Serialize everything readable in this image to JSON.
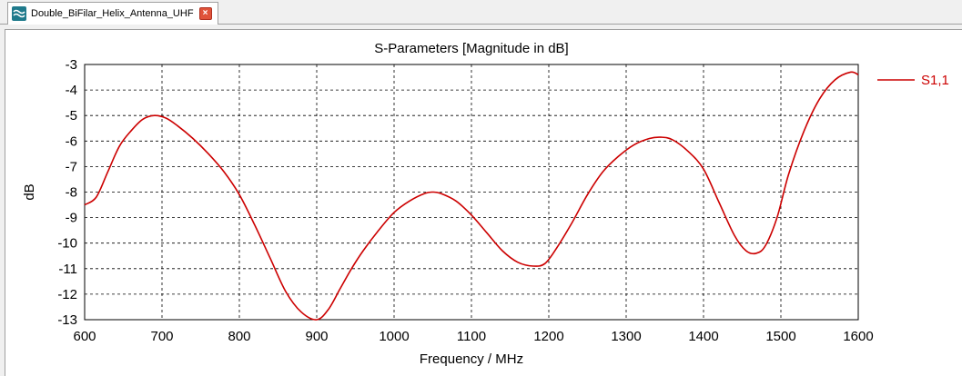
{
  "tab": {
    "title": "Double_BiFilar_Helix_Antenna_UHF",
    "close_symbol": "×"
  },
  "colors": {
    "series": "#cc0000",
    "grid": "#000000",
    "background": "#ffffff"
  },
  "icons": {
    "tab_icon": "wave-icon",
    "close_icon": "close-icon"
  },
  "chart_data": {
    "type": "line",
    "title": "S-Parameters [Magnitude in dB]",
    "xlabel": "Frequency / MHz",
    "ylabel": "dB",
    "xlim": [
      600,
      1600
    ],
    "ylim": [
      -13,
      -3
    ],
    "xticks": [
      600,
      700,
      800,
      900,
      1000,
      1100,
      1200,
      1300,
      1400,
      1500,
      1600
    ],
    "yticks": [
      -3,
      -4,
      -5,
      -6,
      -7,
      -8,
      -9,
      -10,
      -11,
      -12,
      -13
    ],
    "grid": true,
    "legend_position": "right",
    "series": [
      {
        "name": "S1,1",
        "color": "#cc0000",
        "x": [
          600,
          615,
          630,
          645,
          660,
          675,
          690,
          705,
          720,
          740,
          760,
          780,
          800,
          820,
          840,
          860,
          880,
          900,
          915,
          930,
          945,
          960,
          980,
          1000,
          1020,
          1040,
          1050,
          1060,
          1080,
          1100,
          1120,
          1140,
          1160,
          1180,
          1195,
          1210,
          1230,
          1250,
          1270,
          1290,
          1310,
          1330,
          1345,
          1360,
          1380,
          1400,
          1420,
          1440,
          1455,
          1468,
          1480,
          1495,
          1510,
          1530,
          1550,
          1570,
          1590,
          1600
        ],
        "y": [
          -8.5,
          -8.2,
          -7.2,
          -6.2,
          -5.6,
          -5.15,
          -5.0,
          -5.1,
          -5.4,
          -5.9,
          -6.5,
          -7.2,
          -8.1,
          -9.3,
          -10.6,
          -11.9,
          -12.7,
          -13.0,
          -12.6,
          -11.8,
          -11.0,
          -10.3,
          -9.5,
          -8.8,
          -8.35,
          -8.05,
          -8.0,
          -8.05,
          -8.35,
          -8.9,
          -9.6,
          -10.3,
          -10.75,
          -10.9,
          -10.8,
          -10.2,
          -9.2,
          -8.1,
          -7.2,
          -6.6,
          -6.15,
          -5.9,
          -5.85,
          -5.95,
          -6.4,
          -7.1,
          -8.4,
          -9.7,
          -10.3,
          -10.4,
          -10.1,
          -9.0,
          -7.3,
          -5.6,
          -4.35,
          -3.6,
          -3.3,
          -3.4
        ]
      }
    ]
  }
}
